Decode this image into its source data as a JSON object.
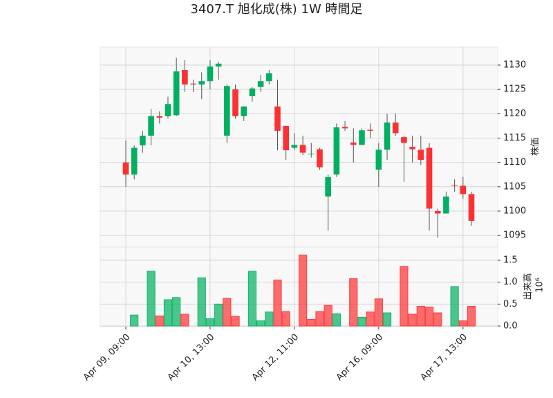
{
  "chart_data": {
    "type": "candlestick",
    "title": "3407.T 旭化成(株) 1W 時間足",
    "categories": [
      "Apr 09, 09:00",
      null,
      null,
      null,
      null,
      null,
      null,
      null,
      null,
      null,
      "Apr 10, 13:00",
      null,
      null,
      null,
      null,
      null,
      null,
      null,
      null,
      null,
      "Apr 12, 11:00",
      null,
      null,
      null,
      null,
      null,
      null,
      null,
      null,
      null,
      "Apr 16, 09:00",
      null,
      null,
      null,
      null,
      null,
      null,
      null,
      null,
      null,
      "Apr 17, 13:00",
      null
    ],
    "open": [
      1110,
      1107.5,
      1113.5,
      1115.5,
      1119.5,
      1119.5,
      1119.7,
      1129,
      1126.2,
      1126,
      1126.7,
      1129.7,
      1115.5,
      1125,
      1119.5,
      1123.6,
      1125.5,
      1126.7,
      1121.5,
      1117.5,
      1113,
      1113.6,
      1111.7,
      1112.7,
      1103,
      1107.5,
      1117.3,
      1114.1,
      1113.6,
      1116.7,
      1108.5,
      1112.6,
      1118.2,
      1115.2,
      1113.2,
      1112.6,
      1113,
      1100,
      1099.5,
      1105.3,
      1105.2,
      1103.5
    ],
    "high": [
      1114.5,
      1113.5,
      1116.5,
      1121,
      1120.5,
      1123.5,
      1131.5,
      1131,
      1127,
      1128.5,
      1131,
      1130.7,
      1126,
      1126,
      1121.5,
      1125.5,
      1128,
      1129,
      1127,
      1117.5,
      1116,
      1115.5,
      1114,
      1113,
      1107.5,
      1118,
      1118.5,
      1117,
      1117,
      1118,
      1114,
      1120,
      1120,
      1115.5,
      1115.5,
      1115.5,
      1114,
      1100.5,
      1104,
      1106.5,
      1107,
      1104
    ],
    "low": [
      1105,
      1106.5,
      1112,
      1113.5,
      1118,
      1119,
      1119.5,
      1124.5,
      1124.5,
      1123,
      1125,
      1127,
      1114,
      1119,
      1118.5,
      1122.5,
      1124.5,
      1126,
      1112.5,
      1110.5,
      1112.5,
      1111.5,
      1111,
      1108.5,
      1096,
      1107,
      1116.5,
      1110,
      1113.5,
      1115,
      1105,
      1110.5,
      1115.5,
      1106,
      1110,
      1109.5,
      1096,
      1094.5,
      1099.5,
      1104,
      1102.5,
      1097
    ],
    "close": [
      1107.5,
      1113,
      1115.5,
      1119.5,
      1119.2,
      1122,
      1128.7,
      1126,
      1126,
      1126.7,
      1129.7,
      1130.3,
      1125.7,
      1119.5,
      1121.5,
      1125.2,
      1126.7,
      1128.3,
      1116.5,
      1112.5,
      1113.6,
      1112,
      1111.8,
      1109,
      1107,
      1117.2,
      1117,
      1113.6,
      1116.6,
      1116.5,
      1112.6,
      1118.2,
      1116,
      1114,
      1112.7,
      1110.5,
      1100.5,
      1099.5,
      1103,
      1105.2,
      1103.5,
      1098
    ],
    "volume": [
      0,
      0.25,
      0,
      1.25,
      0.23,
      0.6,
      0.65,
      0.27,
      0,
      1.1,
      0.17,
      0.5,
      0.63,
      0.22,
      0,
      1.25,
      0.12,
      0.32,
      1.05,
      0.33,
      0,
      1.62,
      0.15,
      0.33,
      0.47,
      0.28,
      0,
      1.08,
      0.2,
      0.32,
      0.62,
      0.3,
      0,
      1.36,
      0.27,
      0.45,
      0.43,
      0.3,
      0,
      0.9,
      0.12,
      0.45
    ],
    "up_color": "#00b060",
    "down_color": "#fe3032",
    "ylabel": "株価",
    "volume_ylabel": "出来高",
    "volume_offset_label": "10⁶",
    "ylim": [
      1092.6,
      1133.7
    ],
    "yticks": [
      1095,
      1100,
      1105,
      1110,
      1115,
      1120,
      1125,
      1130
    ],
    "volume_ylim": [
      0,
      1.8
    ],
    "volume_yticks": [
      {
        "value": 0,
        "label": "0.0"
      },
      {
        "value": 0.5,
        "label": "0.5"
      },
      {
        "value": 1,
        "label": "1.0"
      },
      {
        "value": 1.5,
        "label": "1.5"
      }
    ],
    "grid": true
  }
}
